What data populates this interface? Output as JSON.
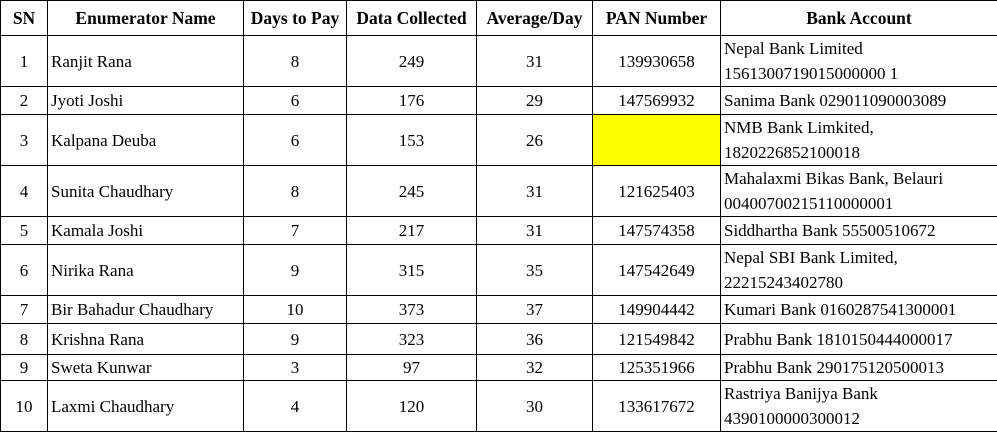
{
  "headers": {
    "sn": "SN",
    "name": "Enumerator Name",
    "days": "Days to Pay",
    "data": "Data Collected",
    "avg": "Average/Day",
    "pan": "PAN Number",
    "bank": "Bank Account"
  },
  "highlight_color": "#ffff00",
  "rows": [
    {
      "sn": "1",
      "name": "Ranjit Rana",
      "days": "8",
      "data": "249",
      "avg": "31",
      "pan": "139930658",
      "bank_line1": "Nepal Bank Limited",
      "bank_line2": "1561300719015000000 1"
    },
    {
      "sn": "2",
      "name": "Jyoti Joshi",
      "days": "6",
      "data": "176",
      "avg": "29",
      "pan": "147569932",
      "bank_line1": "Sanima Bank 029011090003089",
      "bank_line2": ""
    },
    {
      "sn": "3",
      "name": "Kalpana Deuba",
      "days": "6",
      "data": "153",
      "avg": "26",
      "pan": "",
      "bank_line1": "NMB Bank Limkited,",
      "bank_line2": "1820226852100018"
    },
    {
      "sn": "4",
      "name": "Sunita Chaudhary",
      "days": "8",
      "data": "245",
      "avg": "31",
      "pan": "121625403",
      "bank_line1": "Mahalaxmi Bikas Bank, Belauri",
      "bank_line2": "00400700215110000001"
    },
    {
      "sn": "5",
      "name": "Kamala Joshi",
      "days": "7",
      "data": "217",
      "avg": "31",
      "pan": "147574358",
      "bank_line1": "Siddhartha Bank 55500510672",
      "bank_line2": ""
    },
    {
      "sn": "6",
      "name": "Nirika Rana",
      "days": "9",
      "data": "315",
      "avg": "35",
      "pan": "147542649",
      "bank_line1": "Nepal SBI Bank Limited,",
      "bank_line2": "22215243402780"
    },
    {
      "sn": "7",
      "name": "Bir Bahadur Chaudhary",
      "days": "10",
      "data": "373",
      "avg": "37",
      "pan": "149904442",
      "bank_line1": "Kumari Bank 0160287541300001",
      "bank_line2": ""
    },
    {
      "sn": "8",
      "name": "Krishna Rana",
      "days": "9",
      "data": "323",
      "avg": "36",
      "pan": "121549842",
      "bank_line1": "Prabhu Bank 1810150444000017",
      "bank_line2": ""
    },
    {
      "sn": "9",
      "name": "Sweta Kunwar",
      "days": "3",
      "data": "97",
      "avg": "32",
      "pan": "125351966",
      "bank_line1": "Prabhu Bank 290175120500013",
      "bank_line2": ""
    },
    {
      "sn": "10",
      "name": "Laxmi Chaudhary",
      "days": "4",
      "data": "120",
      "avg": "30",
      "pan": "133617672",
      "bank_line1": "Rastriya Banijya Bank",
      "bank_line2": "4390100000300012"
    }
  ]
}
